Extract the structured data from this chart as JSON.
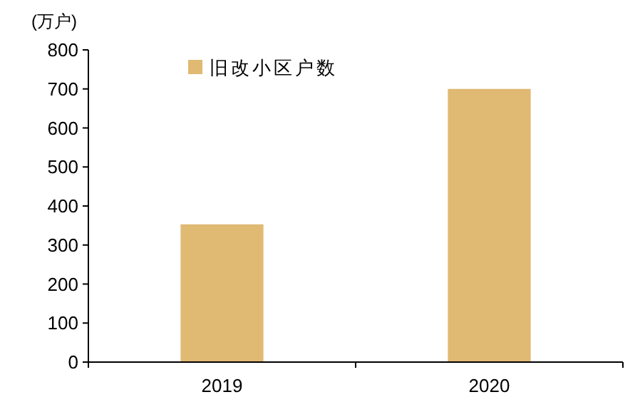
{
  "chart_data": {
    "type": "bar",
    "ylabel": "(万户)",
    "categories": [
      "2019",
      "2020"
    ],
    "series": [
      {
        "name": "旧改小区户数",
        "color": "#e0b973",
        "values": [
          353,
          700
        ]
      }
    ],
    "ylim": [
      0,
      800
    ],
    "yticks": [
      0,
      100,
      200,
      300,
      400,
      500,
      600,
      700,
      800
    ],
    "grid": false,
    "legend": "top left"
  }
}
